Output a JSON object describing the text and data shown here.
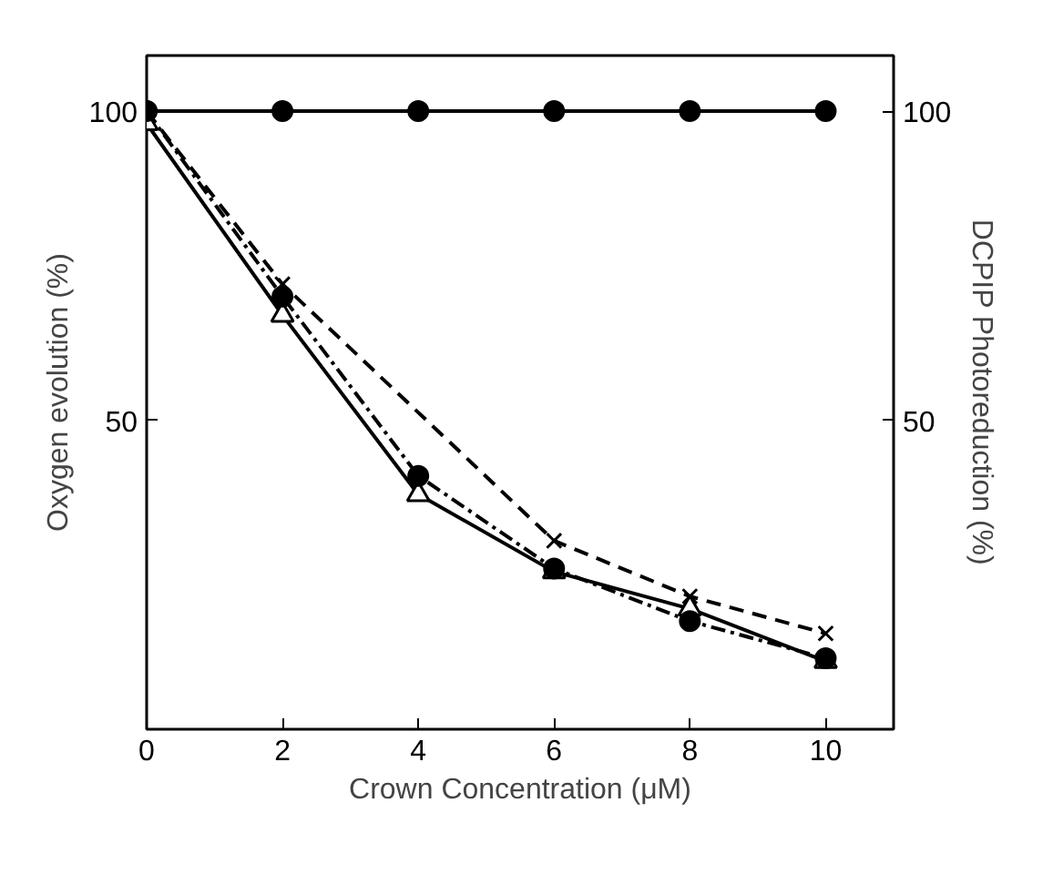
{
  "chart_data": {
    "type": "line",
    "xlabel": "Crown Concentration (μM)",
    "ylabel": "Oxygen evolution (%)",
    "y2label": "DCPIP Photoreduction (%)",
    "xlim": [
      0,
      11
    ],
    "xticks": [
      0,
      2,
      4,
      6,
      8,
      10
    ],
    "ylim": [
      0,
      109
    ],
    "yticks": [
      50,
      100
    ],
    "y2lim": [
      0,
      109
    ],
    "y2ticks": [
      50,
      100
    ],
    "grid": false,
    "series": [
      {
        "color": "#000000",
        "x": [
          0,
          2,
          4,
          6,
          8,
          10
        ],
        "values": [
          100,
          100,
          100,
          100,
          100,
          100
        ],
        "marker": "circle",
        "line_style": "solid"
      },
      {
        "color": "#000000",
        "x": [
          0,
          2,
          4,
          6,
          8,
          10
        ],
        "values": [
          98,
          67,
          38,
          25.5,
          19.5,
          11
        ],
        "marker": "triangle",
        "line_style": "solid"
      },
      {
        "color": "#000000",
        "x": [
          0,
          2,
          4,
          6,
          8,
          10
        ],
        "values": [
          100,
          70,
          41,
          26,
          17.5,
          11.5
        ],
        "marker": "circle",
        "line_style": "dashdot"
      },
      {
        "color": "#000000",
        "x": [
          0,
          2,
          6,
          8,
          10
        ],
        "values": [
          100,
          72,
          30.5,
          21.5,
          15.5
        ],
        "marker": "cross",
        "line_style": "dashed"
      }
    ]
  }
}
